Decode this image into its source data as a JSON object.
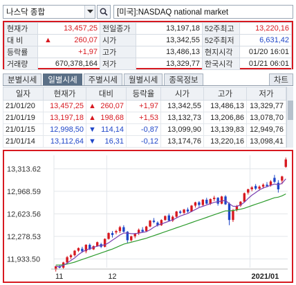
{
  "header": {
    "market_select": "나스닥 종합",
    "name_box": "[미국]:NASDAQ national market"
  },
  "summary": {
    "rows": [
      [
        "현재가",
        "13,457,25",
        "전일종가",
        "13,197,18",
        "52주최고",
        "13,220,16"
      ],
      [
        "대 비",
        "260,07",
        "시가",
        "13,342,55",
        "52주최저",
        "6,631,42"
      ],
      [
        "등락률",
        "+1,97",
        "고가",
        "13,486,13",
        "현지시각",
        "01/20 16:01"
      ],
      [
        "거래량",
        "670,378,164",
        "저가",
        "13,329,77",
        "한국시각",
        "01/21 06:01"
      ]
    ],
    "colors": {
      "up": "#d71920",
      "down": "#1f46c8"
    }
  },
  "tabs": {
    "items": [
      "분별시세",
      "일별시세",
      "주별시세",
      "월별시세",
      "종목정보"
    ],
    "active_index": 1,
    "chart_button": "차트"
  },
  "daily": {
    "headers": [
      "일자",
      "현재가",
      "대비",
      "등락율",
      "시가",
      "고가",
      "저가"
    ],
    "rows": [
      {
        "date": "21/01/20",
        "close": "13,457,25",
        "change": "260,07",
        "dir": "up",
        "rate": "+1,97",
        "open": "13,342,55",
        "high": "13,486,13",
        "low": "13,329,77"
      },
      {
        "date": "21/01/19",
        "close": "13,197,18",
        "change": "198,68",
        "dir": "up",
        "rate": "+1,53",
        "open": "13,132,73",
        "high": "13,206,86",
        "low": "13,078,70"
      },
      {
        "date": "21/01/15",
        "close": "12,998,50",
        "change": "114,14",
        "dir": "down",
        "rate": "-0,87",
        "open": "13,099,90",
        "high": "13,139,83",
        "low": "12,949,76"
      },
      {
        "date": "21/01/14",
        "close": "13,112,64",
        "change": "16,31",
        "dir": "down",
        "rate": "-0,12",
        "open": "13,174,76",
        "high": "13,220,16",
        "low": "13,098,41"
      }
    ]
  },
  "chart_data": {
    "type": "candlestick",
    "y_ticks": [
      "13,313.62",
      "12,968.59",
      "12,623.56",
      "12,278.53",
      "11,933.50"
    ],
    "y_tick_values": [
      13313.62,
      12968.59,
      12623.56,
      12278.53,
      11933.5
    ],
    "ylim": [
      11800,
      13520
    ],
    "x_labels": [
      {
        "label": "11",
        "index": 0
      },
      {
        "label": "12",
        "index": 14
      },
      {
        "label": "2021/01",
        "index": 52
      }
    ],
    "ohlc": [
      [
        11770,
        11830,
        11740,
        11820
      ],
      [
        11820,
        11840,
        11790,
        11800
      ],
      [
        11800,
        11890,
        11780,
        11880
      ],
      [
        11880,
        11980,
        11860,
        11960
      ],
      [
        11960,
        12010,
        11930,
        11990
      ],
      [
        11990,
        12070,
        11970,
        12060
      ],
      [
        12060,
        12110,
        12040,
        12100
      ],
      [
        12090,
        12120,
        12030,
        12050
      ],
      [
        12050,
        12160,
        12020,
        12150
      ],
      [
        12150,
        12170,
        12070,
        12080
      ],
      [
        12080,
        12140,
        12070,
        12130
      ],
      [
        12130,
        12200,
        12120,
        12190
      ],
      [
        12160,
        12180,
        12100,
        12120
      ],
      [
        12120,
        12250,
        12110,
        12240
      ],
      [
        12240,
        12340,
        12230,
        12330
      ],
      [
        12330,
        12360,
        12260,
        12300
      ],
      [
        12340,
        12380,
        12310,
        12360
      ],
      [
        12360,
        12440,
        12330,
        12420
      ],
      [
        12420,
        12450,
        12340,
        12350
      ],
      [
        12350,
        12360,
        12180,
        12220
      ],
      [
        12220,
        12290,
        12200,
        12280
      ],
      [
        12280,
        12330,
        12250,
        12320
      ],
      [
        12330,
        12400,
        12300,
        12380
      ],
      [
        12380,
        12420,
        12340,
        12350
      ],
      [
        12360,
        12440,
        12350,
        12430
      ],
      [
        12430,
        12530,
        12420,
        12520
      ],
      [
        12520,
        12560,
        12480,
        12500
      ],
      [
        12490,
        12510,
        12430,
        12450
      ],
      [
        12450,
        12540,
        12440,
        12530
      ],
      [
        12530,
        12600,
        12520,
        12590
      ],
      [
        12600,
        12630,
        12510,
        12520
      ],
      [
        12520,
        12600,
        12500,
        12580
      ],
      [
        12580,
        12670,
        12560,
        12660
      ],
      [
        12660,
        12680,
        12620,
        12640
      ],
      [
        12640,
        12700,
        12620,
        12690
      ],
      [
        12690,
        12720,
        12640,
        12660
      ],
      [
        12660,
        12760,
        12650,
        12750
      ],
      [
        12750,
        12810,
        12720,
        12800
      ],
      [
        12800,
        12820,
        12730,
        12760
      ],
      [
        12760,
        12850,
        12740,
        12840
      ],
      [
        12840,
        12870,
        12770,
        12780
      ],
      [
        12780,
        12860,
        12760,
        12850
      ],
      [
        12850,
        12900,
        12820,
        12870
      ],
      [
        12870,
        12880,
        12750,
        12780
      ],
      [
        12780,
        12900,
        12770,
        12890
      ],
      [
        12890,
        12910,
        12760,
        12770
      ],
      [
        12780,
        12800,
        12450,
        12530
      ],
      [
        12530,
        12700,
        12500,
        12680
      ],
      [
        12690,
        12760,
        12660,
        12740
      ],
      [
        12750,
        12820,
        12730,
        12810
      ],
      [
        12810,
        12950,
        12800,
        12940
      ],
      [
        12950,
        13010,
        12920,
        13000
      ],
      [
        13000,
        13050,
        12970,
        13030
      ],
      [
        13050,
        13080,
        12990,
        13010
      ],
      [
        13010,
        13060,
        12980,
        13040
      ],
      [
        13040,
        13090,
        13010,
        13070
      ],
      [
        13070,
        13110,
        13030,
        13050
      ],
      [
        13060,
        13140,
        13040,
        13120
      ],
      [
        13175,
        13220,
        13098,
        13113
      ],
      [
        13100,
        13140,
        12950,
        12999
      ],
      [
        13133,
        13207,
        13079,
        13197
      ],
      [
        13343,
        13486,
        13330,
        13457
      ]
    ],
    "ma_short": [
      11820,
      11815,
      11835,
      11870,
      11910,
      11950,
      12000,
      12040,
      12070,
      12090,
      12110,
      12130,
      12140,
      12150,
      12180,
      12220,
      12260,
      12300,
      12330,
      12330,
      12320,
      12320,
      12330,
      12340,
      12350,
      12380,
      12420,
      12450,
      12470,
      12490,
      12510,
      12530,
      12560,
      12590,
      12610,
      12630,
      12660,
      12690,
      12720,
      12740,
      12760,
      12780,
      12800,
      12810,
      12820,
      12830,
      12780,
      12740,
      12740,
      12760,
      12800,
      12860,
      12910,
      12950,
      12990,
      13020,
      13040,
      13060,
      13080,
      13070,
      13090,
      13160
    ],
    "ma_long": [
      11840,
      11840,
      11845,
      11855,
      11870,
      11885,
      11905,
      11925,
      11945,
      11965,
      11985,
      12005,
      12025,
      12045,
      12065,
      12085,
      12110,
      12135,
      12160,
      12175,
      12190,
      12205,
      12220,
      12235,
      12250,
      12270,
      12290,
      12310,
      12330,
      12350,
      12370,
      12390,
      12410,
      12430,
      12450,
      12470,
      12490,
      12510,
      12530,
      12550,
      12570,
      12590,
      12610,
      12630,
      12650,
      12670,
      12670,
      12675,
      12685,
      12695,
      12710,
      12730,
      12750,
      12770,
      12790,
      12810,
      12830,
      12850,
      12870,
      12880,
      12900,
      12930
    ],
    "colors": {
      "up": "#d71920",
      "down": "#1f46c8",
      "ma_short": "#7a3fb0",
      "ma_long": "#2e9c2e",
      "grid": "#e2e6ea"
    }
  }
}
